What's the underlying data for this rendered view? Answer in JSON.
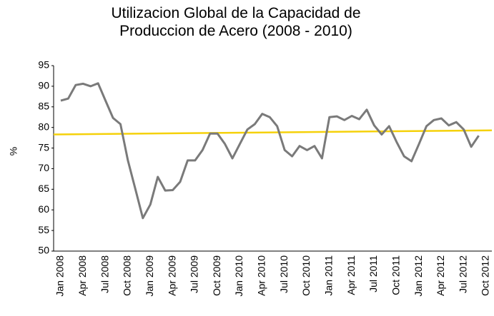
{
  "chart_data": {
    "type": "line",
    "title": "Utilizacion Global de la Capacidad de Produccion de Acero (2008 - 2010)",
    "y_label": "%",
    "categories": [
      "Jan 2008",
      null,
      null,
      "Apr 2008",
      null,
      null,
      "Jul 2008",
      null,
      null,
      "Oct 2008",
      null,
      null,
      "Jan 2009",
      null,
      null,
      "Apr 2009",
      null,
      null,
      "Jul 2009",
      null,
      null,
      "Oct 2009",
      null,
      null,
      "Jan 2010",
      null,
      null,
      "Apr 2010",
      null,
      null,
      "Jul 2010",
      null,
      null,
      "Oct 2010",
      null,
      null,
      "Jan 2011",
      null,
      null,
      "Apr 2011",
      null,
      null,
      "Jul 2011",
      null,
      null,
      "Oct 2011",
      null,
      null,
      "Jan 2012",
      null,
      null,
      "Apr 2012",
      null,
      null,
      "Jul 2012",
      null,
      null,
      "Oct 2012"
    ],
    "values": [
      86.5,
      87,
      90.3,
      90.6,
      90,
      90.7,
      86.5,
      82.3,
      80.8,
      72,
      65,
      58,
      61.3,
      68,
      64.7,
      64.8,
      66.8,
      72,
      72,
      74.5,
      78.5,
      78.5,
      76,
      72.5,
      76,
      79.5,
      80.8,
      83.3,
      82.5,
      80.3,
      74.5,
      73,
      75.5,
      74.5,
      75.5,
      72.5,
      82.5,
      82.7,
      81.8,
      82.8,
      82,
      84.3,
      80.5,
      78.3,
      80.3,
      76.5,
      73,
      71.8,
      76,
      80.3,
      81.8,
      82.2,
      80.5,
      81.3,
      79.5,
      75.3,
      78,
      null
    ],
    "color": "#7a7a7a",
    "trend_line": {
      "color": "#f5d10a",
      "values": [
        78.3,
        79.3
      ]
    },
    "ylim": [
      50,
      95
    ],
    "yticks": [
      50,
      55,
      60,
      65,
      70,
      75,
      80,
      85,
      90,
      95
    ],
    "grid": false
  }
}
